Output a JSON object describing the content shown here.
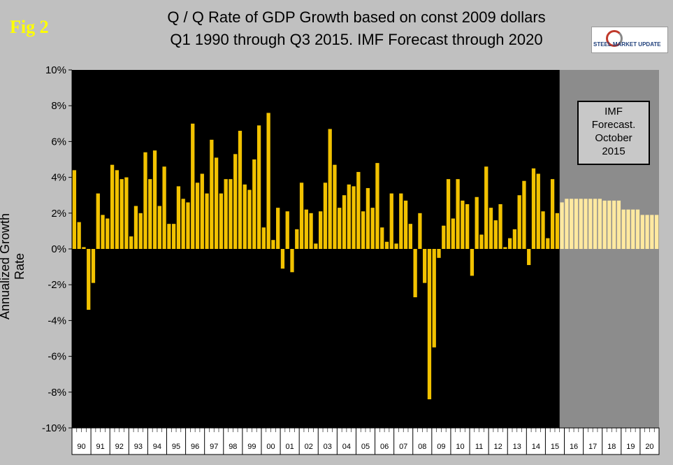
{
  "header": {
    "fig_label": "Fig 2",
    "title_line1": "Q / Q Rate of GDP Growth based on const 2009 dollars",
    "title_line2": "Q1 1990 through Q3 2015. IMF Forecast through 2020"
  },
  "logo": {
    "text": "STEEL MARKET UPDATE"
  },
  "annotation": {
    "lines": [
      "IMF",
      "Forecast.",
      "October",
      "2015"
    ]
  },
  "colors": {
    "plot_bg": "#000000",
    "forecast_bg": "#8c8c8c",
    "bar_actual": "#f2c200",
    "bar_forecast": "#ffe9a0",
    "page_bg": "#c0c0c0"
  },
  "chart_data": {
    "type": "bar",
    "title": "Q / Q Rate of GDP Growth based on const 2009 dollars Q1 1990 through Q3 2015. IMF Forecast through 2020",
    "xlabel": "",
    "ylabel": "Annualized Growth Rate",
    "ylim": [
      -10,
      10
    ],
    "yticks": [
      10,
      8,
      6,
      4,
      2,
      0,
      -2,
      -4,
      -6,
      -8,
      -10
    ],
    "ytick_labels": [
      "10%",
      "8%",
      "6%",
      "4%",
      "2%",
      "0%",
      "-2%",
      "-4%",
      "-6%",
      "-8%",
      "-10%"
    ],
    "year_labels": [
      "90",
      "91",
      "92",
      "93",
      "94",
      "95",
      "96",
      "97",
      "98",
      "99",
      "00",
      "01",
      "02",
      "03",
      "04",
      "05",
      "06",
      "07",
      "08",
      "09",
      "10",
      "11",
      "12",
      "13",
      "14",
      "15",
      "16",
      "17",
      "18",
      "19",
      "20"
    ],
    "grid": false,
    "legend": "none",
    "series": [
      {
        "kind": "actual",
        "start": "1990 Q1",
        "end": "2015 Q3",
        "values": [
          4.4,
          1.5,
          0.1,
          -3.4,
          -1.9,
          3.1,
          1.9,
          1.7,
          4.7,
          4.4,
          3.9,
          4.0,
          0.7,
          2.4,
          2.0,
          5.4,
          3.9,
          5.5,
          2.4,
          4.6,
          1.4,
          1.4,
          3.5,
          2.8,
          2.6,
          7.0,
          3.7,
          4.2,
          3.1,
          6.1,
          5.1,
          3.1,
          3.9,
          3.9,
          5.3,
          6.6,
          3.6,
          3.3,
          5.0,
          6.9,
          1.2,
          7.6,
          0.5,
          2.3,
          -1.1,
          2.1,
          -1.3,
          1.1,
          3.7,
          2.2,
          2.0,
          0.3,
          2.1,
          3.7,
          6.7,
          4.7,
          2.3,
          3.0,
          3.6,
          3.5,
          4.3,
          2.1,
          3.4,
          2.3,
          4.8,
          1.2,
          0.4,
          3.1,
          0.3,
          3.1,
          2.7,
          1.4,
          -2.7,
          2.0,
          -1.9,
          -8.4,
          -5.5,
          -0.5,
          1.3,
          3.9,
          1.7,
          3.9,
          2.7,
          2.5,
          -1.5,
          2.9,
          0.8,
          4.6,
          2.3,
          1.6,
          2.5,
          0.1,
          0.6,
          1.1,
          3.0,
          3.8,
          -0.9,
          4.5,
          4.2,
          2.1,
          0.6,
          3.9,
          2.0
        ]
      },
      {
        "kind": "forecast",
        "start": "2015 Q4",
        "end": "2020 Q4",
        "values": [
          2.6,
          2.8,
          2.8,
          2.8,
          2.8,
          2.8,
          2.8,
          2.8,
          2.8,
          2.7,
          2.7,
          2.7,
          2.7,
          2.2,
          2.2,
          2.2,
          2.2,
          1.9,
          1.9,
          1.9,
          1.9
        ]
      }
    ]
  }
}
